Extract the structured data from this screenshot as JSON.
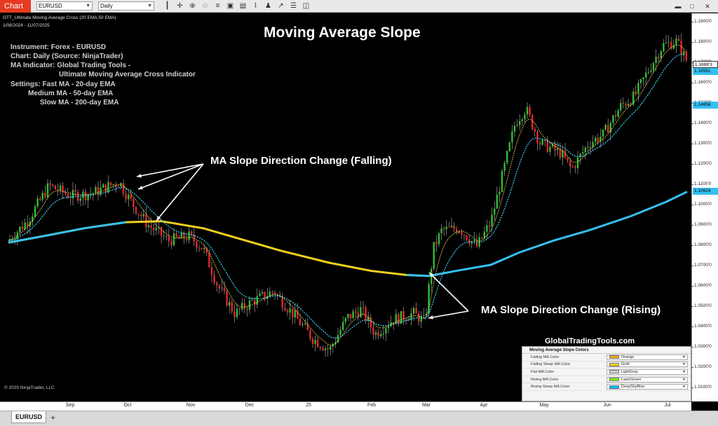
{
  "toolbar": {
    "chart_label": "Chart",
    "instrument": "EURUSD",
    "interval": "Daily",
    "icons": [
      "bar-style-icon",
      "crosshair-icon",
      "zoom-in-icon",
      "zoom-out-icon",
      "pan-icon",
      "data-box-icon",
      "templates-icon",
      "indicators-icon",
      "strategies-icon",
      "drawing-tools-icon",
      "properties-icon",
      "snapshot-icon"
    ],
    "window_controls": [
      "minimize-icon",
      "maximize-icon",
      "close-icon"
    ]
  },
  "chart": {
    "indicator_line": "GTT_Ultimate Moving Average Cross (20 EMA,50 EMA)",
    "date_range": "1/08/2024 - 11/07/2025",
    "headline": "Moving Average Slope",
    "info_lines": [
      "Instrument: Forex - EURUSD",
      "Chart: Daily (Source: NinjaTrader)",
      "MA Indicator: Global Trading Tools -",
      "Ultimate Moving Average Cross Indicator",
      "Settings: Fast MA -   20-day EMA",
      "Medium MA -   50-day EMA",
      "Slow MA - 200-day EMA"
    ],
    "callout_falling": "MA Slope Direction Change (Falling)",
    "callout_rising": "MA Slope Direction Change (Rising)",
    "watermark": "GlobalTradingTools.com",
    "copyright": "© 2025 NinjaTrader, LLC"
  },
  "price_axis": {
    "ticks": [
      "1.1900'0",
      "1.1800'0",
      "1.1700'0",
      "1.1600'0",
      "1.1500'0",
      "1.1400'0",
      "1.1300'0",
      "1.1200'0",
      "1.1100'0",
      "1.1000'0",
      "1.0900'0",
      "1.0800'0",
      "1.0700'0",
      "1.0600'0",
      "1.0500'0",
      "1.0400'0",
      "1.0300'0",
      "1.0200'0",
      "1.0100'0"
    ],
    "tags": [
      {
        "text": "1.1688'3",
        "bg": "#ffffff",
        "fg": "#000000"
      },
      {
        "text": "1.16561",
        "bg": "#35c0f0",
        "fg": "#000000"
      },
      {
        "text": "1.14856",
        "bg": "#35c0f0",
        "fg": "#000000"
      },
      {
        "text": "1.10624",
        "bg": "#35c0f0",
        "fg": "#000000"
      }
    ]
  },
  "time_axis": {
    "ticks": [
      "Sep",
      "Oct",
      "Nov",
      "Dec",
      "25",
      "Feb",
      "Mar",
      "Apr",
      "May",
      "Jun",
      "Jul"
    ]
  },
  "slope_panel": {
    "title": "Moving Average Slope Colors",
    "rows": [
      {
        "label": "Falling MA Color",
        "value": "Orange",
        "color": "#f5a623"
      },
      {
        "label": "Falling Steep MA Color",
        "value": "Gold",
        "color": "#f2d01f"
      },
      {
        "label": "Flat MA Color",
        "value": "LightGray",
        "color": "#d3d3d3"
      },
      {
        "label": "Rising MA Color",
        "value": "LawnGreen",
        "color": "#7cfc00"
      },
      {
        "label": "Rising Steep MA Color",
        "value": "DeepSkyBlue",
        "color": "#00bfff"
      }
    ]
  },
  "tabs": {
    "active": "EURUSD",
    "add": "+"
  },
  "colors": {
    "up_candle": "#2fbf2f",
    "down_candle": "#e8262b",
    "fast_ma": "#e6d25a",
    "medium_ma": "#3ad0f0",
    "slow_ma_falling": "#f2d01f",
    "slow_ma_rising": "#35c0f0",
    "accent": "#e63a22"
  }
}
